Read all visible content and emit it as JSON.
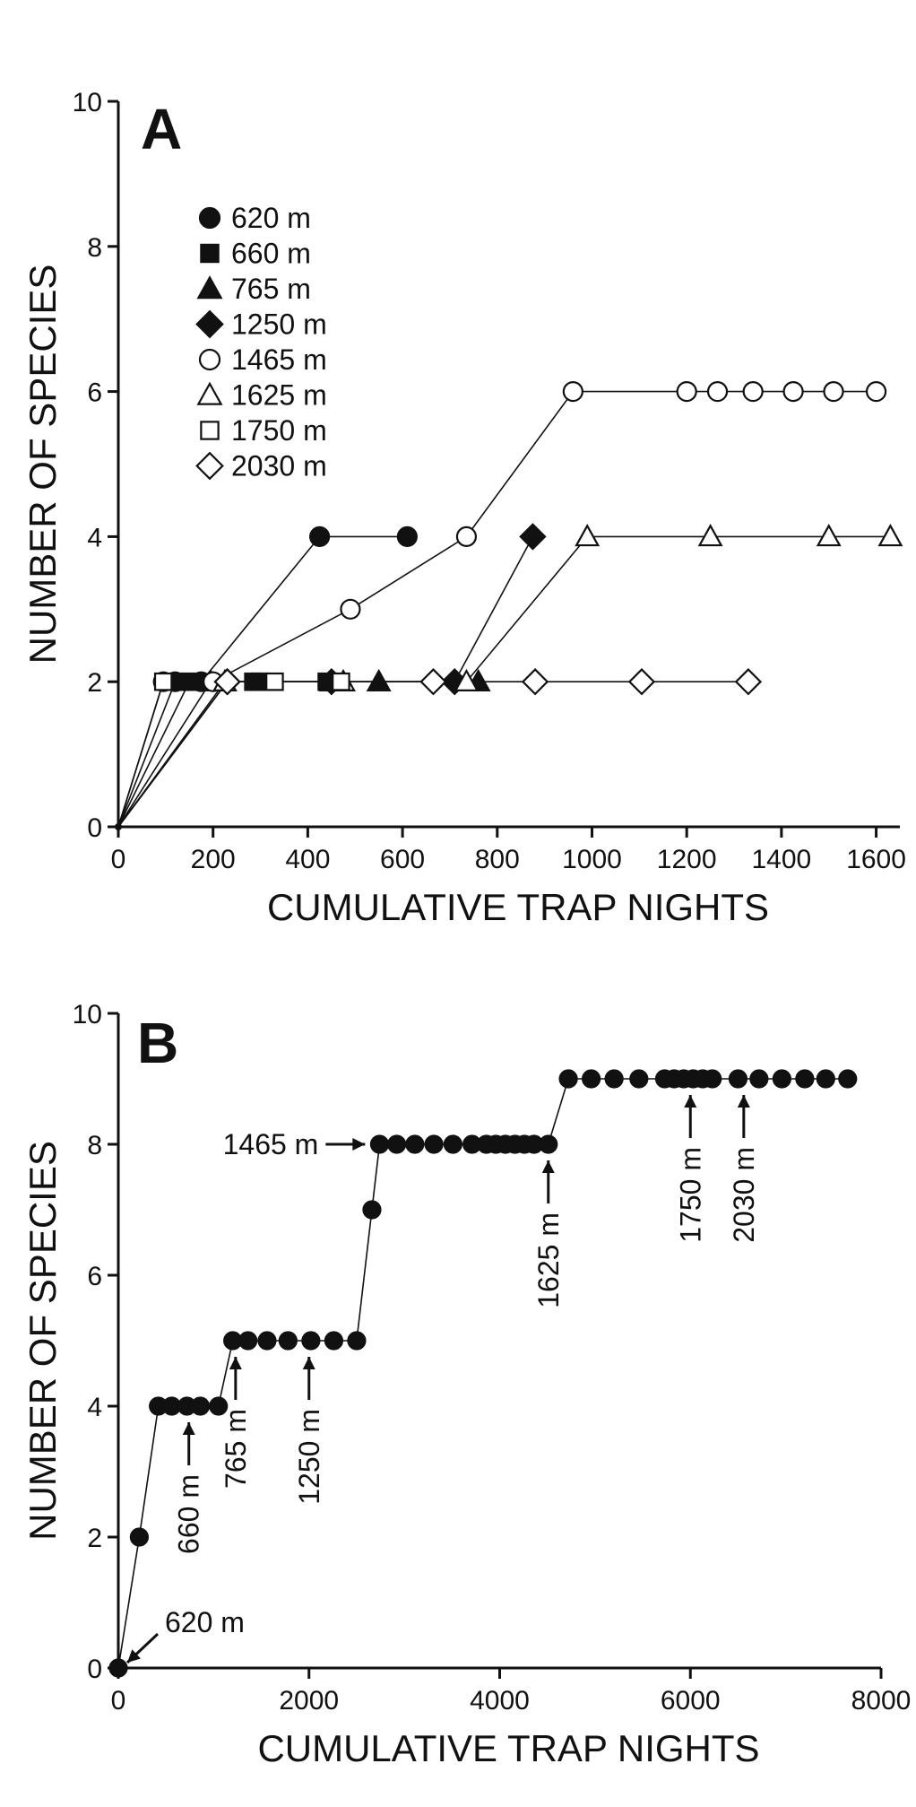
{
  "chart_data": [
    {
      "panel": "A",
      "type": "line",
      "xlabel": "CUMULATIVE TRAP NIGHTS",
      "ylabel": "NUMBER OF SPECIES",
      "xlim": [
        0,
        1650
      ],
      "ylim": [
        0,
        10
      ],
      "xticks": [
        0,
        200,
        400,
        600,
        800,
        1000,
        1200,
        1400,
        1600
      ],
      "yticks": [
        0,
        2,
        4,
        6,
        8,
        10
      ],
      "legend_position": "top-left",
      "series": [
        {
          "name": "620 m",
          "marker": "circle",
          "filled": true,
          "x": [
            0,
            120,
            175,
            425,
            610
          ],
          "y": [
            0,
            2,
            2,
            4,
            4
          ]
        },
        {
          "name": "660 m",
          "marker": "square",
          "filled": true,
          "x": [
            0,
            150,
            285,
            300,
            440
          ],
          "y": [
            0,
            2,
            2,
            2,
            2
          ]
        },
        {
          "name": "765 m",
          "marker": "triangle",
          "filled": true,
          "x": [
            0,
            195,
            450,
            550,
            760
          ],
          "y": [
            0,
            2,
            2,
            2,
            2
          ]
        },
        {
          "name": "1250 m",
          "marker": "diamond",
          "filled": true,
          "x": [
            0,
            230,
            450,
            710,
            875
          ],
          "y": [
            0,
            2,
            2,
            2,
            4
          ]
        },
        {
          "name": "1465 m",
          "marker": "circle",
          "filled": false,
          "x": [
            0,
            95,
            200,
            490,
            735,
            960,
            1200,
            1265,
            1340,
            1425,
            1510,
            1600
          ],
          "y": [
            0,
            2,
            2,
            3,
            4,
            6,
            6,
            6,
            6,
            6,
            6,
            6
          ]
        },
        {
          "name": "1625 m",
          "marker": "triangle",
          "filled": false,
          "x": [
            0,
            225,
            475,
            735,
            990,
            1250,
            1500,
            1630
          ],
          "y": [
            0,
            2,
            2,
            2,
            4,
            4,
            4,
            4
          ]
        },
        {
          "name": "1750 m",
          "marker": "square",
          "filled": false,
          "x": [
            0,
            95,
            330,
            470
          ],
          "y": [
            0,
            2,
            2,
            2
          ]
        },
        {
          "name": "2030 m",
          "marker": "diamond",
          "filled": false,
          "x": [
            0,
            230,
            665,
            880,
            1105,
            1330
          ],
          "y": [
            0,
            2,
            2,
            2,
            2,
            2
          ]
        }
      ]
    },
    {
      "panel": "B",
      "type": "line",
      "xlabel": "CUMULATIVE TRAP NIGHTS",
      "ylabel": "NUMBER OF SPECIES",
      "xlim": [
        0,
        8000
      ],
      "ylim": [
        0,
        10
      ],
      "xticks": [
        0,
        2000,
        4000,
        6000,
        8000
      ],
      "yticks": [
        0,
        2,
        4,
        6,
        8,
        10
      ],
      "series": [
        {
          "name": "",
          "marker": "circle",
          "filled": true,
          "x": [
            0,
            220,
            420,
            560,
            720,
            860,
            1050,
            1200,
            1360,
            1560,
            1780,
            2020,
            2260,
            2500,
            2660,
            2740,
            2920,
            3110,
            3310,
            3510,
            3710,
            3860,
            3960,
            4060,
            4160,
            4260,
            4360,
            4510,
            4720,
            4960,
            5200,
            5460,
            5730,
            5830,
            5930,
            6030,
            6130,
            6230,
            6500,
            6720,
            6960,
            7200,
            7420,
            7650
          ],
          "y": [
            0,
            2,
            4,
            4,
            4,
            4,
            4,
            5,
            5,
            5,
            5,
            5,
            5,
            5,
            7,
            8,
            8,
            8,
            8,
            8,
            8,
            8,
            8,
            8,
            8,
            8,
            8,
            8,
            9,
            9,
            9,
            9,
            9,
            9,
            9,
            9,
            9,
            9,
            9,
            9,
            9,
            9,
            9,
            9
          ]
        }
      ],
      "annotations": [
        {
          "text": "620 m",
          "x": 0,
          "y": 0,
          "orientation": "horizontal"
        },
        {
          "text": "660 m",
          "x": 740,
          "y": 4,
          "orientation": "vertical"
        },
        {
          "text": "765 m",
          "x": 1230,
          "y": 5,
          "orientation": "vertical"
        },
        {
          "text": "1250 m",
          "x": 2000,
          "y": 5,
          "orientation": "vertical"
        },
        {
          "text": "1465 m",
          "x": 2720,
          "y": 8,
          "orientation": "horizontal"
        },
        {
          "text": "1625 m",
          "x": 4510,
          "y": 8,
          "orientation": "vertical"
        },
        {
          "text": "1750 m",
          "x": 6000,
          "y": 9,
          "orientation": "vertical"
        },
        {
          "text": "2030 m",
          "x": 6560,
          "y": 9,
          "orientation": "vertical"
        }
      ]
    }
  ]
}
